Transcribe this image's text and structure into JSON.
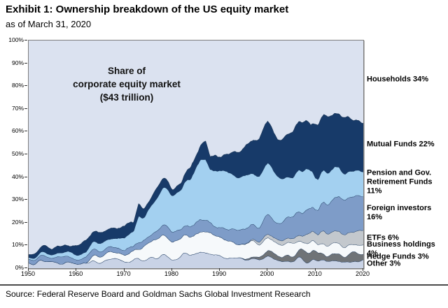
{
  "header": {
    "title": "Exhibit 1: Ownership breakdown of the US equity market",
    "subtitle": "as of March 31, 2020"
  },
  "source": "Source: Federal Reserve Board and Goldman Sachs Global Investment Research",
  "chart_data": {
    "type": "area",
    "stacked": true,
    "title": "Share of corporate equity market ($43 trillion)",
    "annotation": {
      "lines": [
        "Share of",
        "corporate equity market",
        "($43 trillion)"
      ]
    },
    "x_range": [
      1950,
      2020
    ],
    "x_ticks": [
      1950,
      1960,
      1970,
      1980,
      1990,
      2000,
      2010,
      2020
    ],
    "y_axis": {
      "min": 0,
      "max": 100,
      "step": 10,
      "suffix": "%"
    },
    "grid": false,
    "legend_position": "right",
    "edge_color": "#1d3a5f",
    "x": [
      1950,
      1952,
      1954,
      1956,
      1958,
      1960,
      1962,
      1964,
      1966,
      1968,
      1970,
      1972,
      1973,
      1974,
      1975,
      1976,
      1978,
      1980,
      1982,
      1984,
      1986,
      1987,
      1988,
      1990,
      1992,
      1994,
      1996,
      1998,
      2000,
      2002,
      2004,
      2006,
      2008,
      2009,
      2010,
      2012,
      2014,
      2016,
      2018,
      2020
    ],
    "series": [
      {
        "name": "other",
        "label": "Other 3%",
        "color": "#c9d3e6",
        "values": [
          3.5,
          3.3,
          3.2,
          3.0,
          3.0,
          3.0,
          3.0,
          3.0,
          3.0,
          3.2,
          3.2,
          3.5,
          4.0,
          4.0,
          4.2,
          4.5,
          5.0,
          4.5,
          5.5,
          6.0,
          6.5,
          6.5,
          6.0,
          5.0,
          4.5,
          4.0,
          4.0,
          4.2,
          4.5,
          4.0,
          3.8,
          3.5,
          3.5,
          3.3,
          3.0,
          3.0,
          3.0,
          3.0,
          3.0,
          3.0
        ]
      },
      {
        "name": "hedge_funds",
        "label": "Hedge Funds 3%",
        "color": "#6f7377",
        "values": [
          0,
          0,
          0,
          0,
          0,
          0,
          0,
          0,
          0,
          0,
          0,
          0,
          0,
          0,
          0,
          0,
          0,
          0,
          0,
          0,
          0,
          0,
          0,
          0,
          0,
          0,
          0.5,
          1.2,
          2.0,
          2.2,
          2.5,
          2.8,
          4.0,
          3.2,
          3.0,
          3.0,
          3.0,
          3.0,
          3.2,
          3.0
        ]
      },
      {
        "name": "business_holdings",
        "label": "Business holdings 4%",
        "color": "#f6f9fb",
        "values": [
          0,
          0,
          0,
          0,
          0,
          0,
          0,
          2.5,
          2.8,
          3.0,
          3.2,
          3.5,
          4.0,
          6.5,
          7.0,
          7.5,
          8.0,
          7.7,
          8.0,
          8.5,
          9.0,
          9.0,
          9.0,
          8.5,
          7.5,
          6.8,
          6.0,
          5.8,
          5.5,
          5.0,
          4.8,
          4.5,
          4.3,
          4.2,
          4.0,
          4.0,
          4.0,
          4.0,
          4.0,
          4.0
        ]
      },
      {
        "name": "etfs",
        "label": "ETFs 6%",
        "color": "#c3c8cd",
        "values": [
          0,
          0,
          0,
          0,
          0,
          0,
          0,
          0,
          0,
          0,
          0,
          0,
          0,
          0,
          0,
          0,
          0,
          0,
          0,
          0,
          0,
          0,
          0,
          0,
          0,
          0,
          0.4,
          1.0,
          1.5,
          2.0,
          2.3,
          2.8,
          3.5,
          3.8,
          4.3,
          4.8,
          5.3,
          5.6,
          5.8,
          6.0
        ]
      },
      {
        "name": "foreign_investors",
        "label": "Foreign investors 16%",
        "color": "#7e9cc8",
        "values": [
          2.0,
          2.0,
          2.0,
          2.2,
          2.3,
          2.5,
          2.5,
          2.5,
          2.3,
          2.2,
          2.2,
          2.5,
          2.8,
          3.0,
          3.2,
          3.5,
          4.0,
          4.5,
          4.5,
          4.8,
          5.5,
          5.8,
          5.0,
          5.0,
          5.5,
          6.0,
          6.3,
          6.8,
          7.2,
          8.0,
          8.5,
          9.5,
          10.5,
          11.0,
          11.5,
          13.0,
          14.5,
          15.5,
          15.8,
          16.0
        ]
      },
      {
        "name": "pension_gov_retirement",
        "label": "Pension and Gov. Retirement Funds 11%",
        "color": "#a3d0f0",
        "values": [
          0.8,
          1.0,
          1.2,
          1.5,
          1.8,
          2.0,
          2.5,
          3.2,
          4.0,
          4.8,
          5.5,
          7.0,
          11.0,
          10.0,
          11.5,
          13.0,
          16.0,
          16.5,
          17.5,
          21.0,
          26.0,
          27.0,
          24.0,
          25.5,
          25.0,
          24.0,
          23.0,
          22.5,
          22.0,
          20.0,
          18.5,
          17.5,
          17.5,
          16.0,
          14.5,
          13.5,
          13.0,
          12.0,
          11.5,
          11.0
        ]
      },
      {
        "name": "mutual_funds",
        "label": "Mutual Funds 22%",
        "color": "#173a69",
        "values": [
          2.2,
          2.3,
          2.5,
          2.8,
          3.0,
          3.5,
          3.8,
          4.3,
          4.5,
          5.0,
          4.8,
          4.5,
          5.5,
          4.0,
          3.5,
          3.5,
          3.2,
          3.2,
          3.5,
          4.5,
          6.5,
          8.0,
          6.0,
          7.0,
          9.0,
          11.0,
          13.5,
          15.5,
          17.5,
          16.5,
          18.5,
          21.5,
          21.0,
          20.0,
          23.5,
          23.0,
          24.0,
          23.5,
          22.5,
          22.0
        ]
      }
    ],
    "remainder_series": {
      "name": "households",
      "label": "Households 34%",
      "color": "#dbe2f0"
    }
  }
}
